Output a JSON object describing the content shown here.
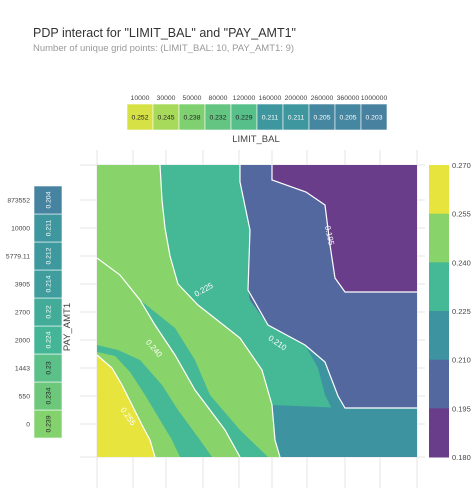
{
  "title": "PDP interact for \"LIMIT_BAL\" and \"PAY_AMT1\"",
  "subtitle": "Number of unique grid points: (LIMIT_BAL: 10, PAY_AMT1: 9)",
  "chart_data": {
    "type": "contour",
    "xlabel": "LIMIT_BAL",
    "ylabel": "PAY_AMT1",
    "x_grid": [
      "10000",
      "30000",
      "50000",
      "80000",
      "120000",
      "160000",
      "200000",
      "260000",
      "360000",
      "1000000"
    ],
    "x_pdp_values": [
      "0.252",
      "0.245",
      "0.238",
      "0.232",
      "0.229",
      "0.211",
      "0.211",
      "0.205",
      "0.205",
      "0.203"
    ],
    "y_grid": [
      "0",
      "550",
      "1443",
      "2000",
      "2700",
      "3905",
      "5779.11",
      "10000",
      "873552"
    ],
    "y_pdp_values": [
      "0.239",
      "0.234",
      "0.23",
      "0.224",
      "0.22",
      "0.214",
      "0.212",
      "0.211",
      "0.204"
    ],
    "contour_labels": [
      "0.195",
      "0.225",
      "0.210",
      "0.240",
      "0.255"
    ],
    "colorbar": {
      "min": 0.18,
      "max": 0.27,
      "ticks": [
        "0.270",
        "0.255",
        "0.240",
        "0.225",
        "0.210",
        "0.195",
        "0.180"
      ]
    },
    "colors": {
      "yellow": "#e6e43d",
      "light_green": "#89d46a",
      "green": "#45b896",
      "teal": "#3d94a0",
      "blue": "#5468a0",
      "purple": "#6a3d8a"
    }
  }
}
